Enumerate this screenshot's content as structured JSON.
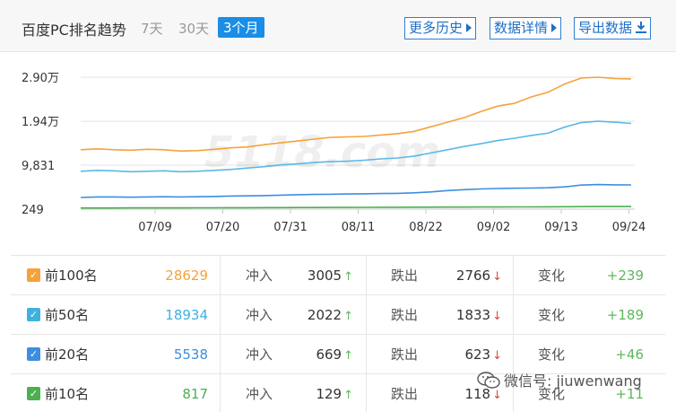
{
  "header": {
    "title": "百度PC排名趋势",
    "ranges": [
      "7天",
      "30天",
      "3个月"
    ],
    "active_range": "3个月",
    "buttons": {
      "more_history": "更多历史",
      "data_details": "数据详情",
      "export_data": "导出数据"
    },
    "icons": {
      "arrow": "triangle-right-icon",
      "download": "download-icon"
    }
  },
  "chart_data": {
    "type": "line",
    "watermark": "5118.com",
    "y_ticks": [
      {
        "value": 249,
        "label": "249"
      },
      {
        "value": 9831,
        "label": "9,831"
      },
      {
        "value": 19400,
        "label": "1.94万"
      },
      {
        "value": 29000,
        "label": "2.90万"
      }
    ],
    "ylim": [
      249,
      29000
    ],
    "x_ticks": [
      "07/09",
      "07/20",
      "07/31",
      "08/11",
      "08/22",
      "09/02",
      "09/13",
      "09/24"
    ],
    "grid": "horizontal",
    "series": [
      {
        "name": "前100名",
        "color": "#f5a23c",
        "values": [
          13200,
          13400,
          13200,
          13100,
          13300,
          13200,
          12900,
          13000,
          13300,
          13600,
          13800,
          14300,
          14700,
          15100,
          15500,
          15900,
          16000,
          16100,
          16400,
          16700,
          17200,
          18200,
          19200,
          20200,
          21500,
          22700,
          23300,
          24700,
          25700,
          27500,
          28800,
          29000,
          28700,
          28629
        ]
      },
      {
        "name": "前50名",
        "color": "#5bb8e8",
        "values": [
          8500,
          8700,
          8600,
          8400,
          8500,
          8600,
          8400,
          8500,
          8700,
          8900,
          9200,
          9500,
          9900,
          10100,
          10400,
          10600,
          10700,
          10900,
          11200,
          11400,
          11800,
          12500,
          13200,
          13900,
          14500,
          15200,
          15700,
          16300,
          16800,
          18100,
          19100,
          19400,
          19200,
          18934
        ]
      },
      {
        "name": "前20名",
        "color": "#3d8ee0",
        "values": [
          2800,
          2900,
          2900,
          2850,
          2900,
          2950,
          2900,
          2950,
          3000,
          3100,
          3150,
          3200,
          3300,
          3400,
          3450,
          3500,
          3550,
          3600,
          3650,
          3700,
          3800,
          4000,
          4300,
          4500,
          4650,
          4750,
          4800,
          4850,
          4900,
          5100,
          5500,
          5600,
          5550,
          5538
        ]
      },
      {
        "name": "前10名",
        "color": "#4caf50",
        "values": [
          500,
          510,
          510,
          520,
          520,
          530,
          530,
          540,
          550,
          560,
          570,
          580,
          590,
          600,
          610,
          620,
          630,
          640,
          650,
          660,
          670,
          680,
          690,
          700,
          710,
          720,
          730,
          740,
          760,
          780,
          800,
          810,
          815,
          817
        ]
      }
    ]
  },
  "table": {
    "rows": [
      {
        "label": "前100名",
        "color": "#f5a23c",
        "total": "28629",
        "in_label": "冲入",
        "in": "3005",
        "out_label": "跌出",
        "out": "2766",
        "change_label": "变化",
        "change": "+239"
      },
      {
        "label": "前50名",
        "color": "#3fb0e0",
        "total": "18934",
        "in_label": "冲入",
        "in": "2022",
        "out_label": "跌出",
        "out": "1833",
        "change_label": "变化",
        "change": "+189"
      },
      {
        "label": "前20名",
        "color": "#3d8ee0",
        "total": "5538",
        "in_label": "冲入",
        "in": "669",
        "out_label": "跌出",
        "out": "623",
        "change_label": "变化",
        "change": "+46"
      },
      {
        "label": "前10名",
        "color": "#4caf50",
        "total": "817",
        "in_label": "冲入",
        "in": "129",
        "out_label": "跌出",
        "out": "118",
        "change_label": "变化",
        "change": "+11"
      }
    ]
  },
  "overlay": {
    "wechat_text": "微信号: jiuwenwang",
    "icon": "wechat-icon"
  }
}
